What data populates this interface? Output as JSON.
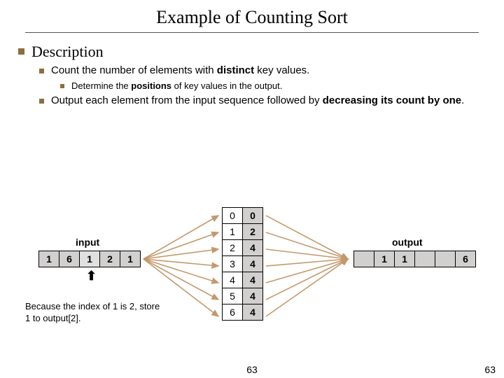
{
  "title": "Example of Counting Sort",
  "bullets": {
    "l1": "Description",
    "l2a_pre": "Count the number of elements with ",
    "l2a_b": "distinct",
    "l2a_post": " key values.",
    "l3_pre": "Determine the ",
    "l3_b": "positions",
    "l3_post": " of key values in the output.",
    "l2b_pre": "Output each element from the input sequence followed by ",
    "l2b_b": "decreasing its count by one",
    "l2b_post": "."
  },
  "labels": {
    "input": "input",
    "output": "output"
  },
  "input_arr": [
    "1",
    "6",
    "1",
    "2",
    "1"
  ],
  "input_active_index": 2,
  "count_table": {
    "keys": [
      "0",
      "1",
      "2",
      "3",
      "4",
      "5",
      "6"
    ],
    "counts": [
      "0",
      "2",
      "4",
      "4",
      "4",
      "4",
      "4"
    ]
  },
  "output_arr": [
    "",
    "1",
    "1",
    "",
    "",
    "6"
  ],
  "pointer_char": "⬆",
  "caption": "Because the index of 1 is 2, store 1 to output[2].",
  "page_num": "63",
  "colors": {
    "bullet": "#8b6f3f",
    "cell_gray": "#d2d0ce",
    "cell_active": "#e0e0e0",
    "arrow": "#c3996b"
  }
}
